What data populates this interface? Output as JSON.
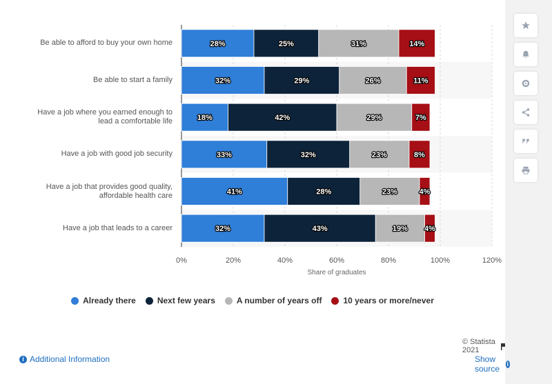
{
  "chart_data": {
    "type": "bar",
    "orientation": "horizontal",
    "stacked": true,
    "categories": [
      [
        "Be able to afford to buy your own home"
      ],
      [
        "Be able to start a family"
      ],
      [
        "Have a job where you earned enough to",
        "lead a comfortable life"
      ],
      [
        "Have a job with good job security"
      ],
      [
        "Have a job that provides good quality,",
        "affordable health care"
      ],
      [
        "Have a job that leads to a career"
      ]
    ],
    "series": [
      {
        "name": "Already there",
        "color": "#2f7ed8",
        "values": [
          28,
          32,
          18,
          33,
          41,
          32
        ]
      },
      {
        "name": "Next few years",
        "color": "#0d233a",
        "values": [
          25,
          29,
          42,
          32,
          28,
          43
        ]
      },
      {
        "name": "A number of years off",
        "color": "#b7b7b7",
        "values": [
          31,
          26,
          29,
          23,
          23,
          19
        ]
      },
      {
        "name": "10 years or more/never",
        "color": "#a50f15",
        "values": [
          14,
          11,
          7,
          8,
          4,
          4
        ]
      }
    ],
    "data_labels": [
      [
        "28%",
        "32%",
        "18%",
        "33%",
        "41%",
        "32%"
      ],
      [
        "25%",
        "29%",
        "42%",
        "32%",
        "28%",
        "43%"
      ],
      [
        "31%",
        "26%",
        "29%",
        "23%",
        "23%",
        "19%"
      ],
      [
        "14%",
        "11%",
        "7%",
        "8%",
        "4%",
        "4%"
      ]
    ],
    "xlabel": "Share of graduates",
    "xticks": [
      "0%",
      "20%",
      "40%",
      "60%",
      "80%",
      "100%",
      "120%"
    ],
    "xlim": [
      0,
      120
    ],
    "grid": true,
    "legend_position": "bottom"
  },
  "footer": {
    "additional_info": "Additional Information",
    "credit": "© Statista 2021",
    "show_source": "Show source"
  },
  "toolbar": {
    "icons": [
      "star-icon",
      "bell-icon",
      "gear-icon",
      "share-icon",
      "quote-icon",
      "print-icon"
    ]
  }
}
